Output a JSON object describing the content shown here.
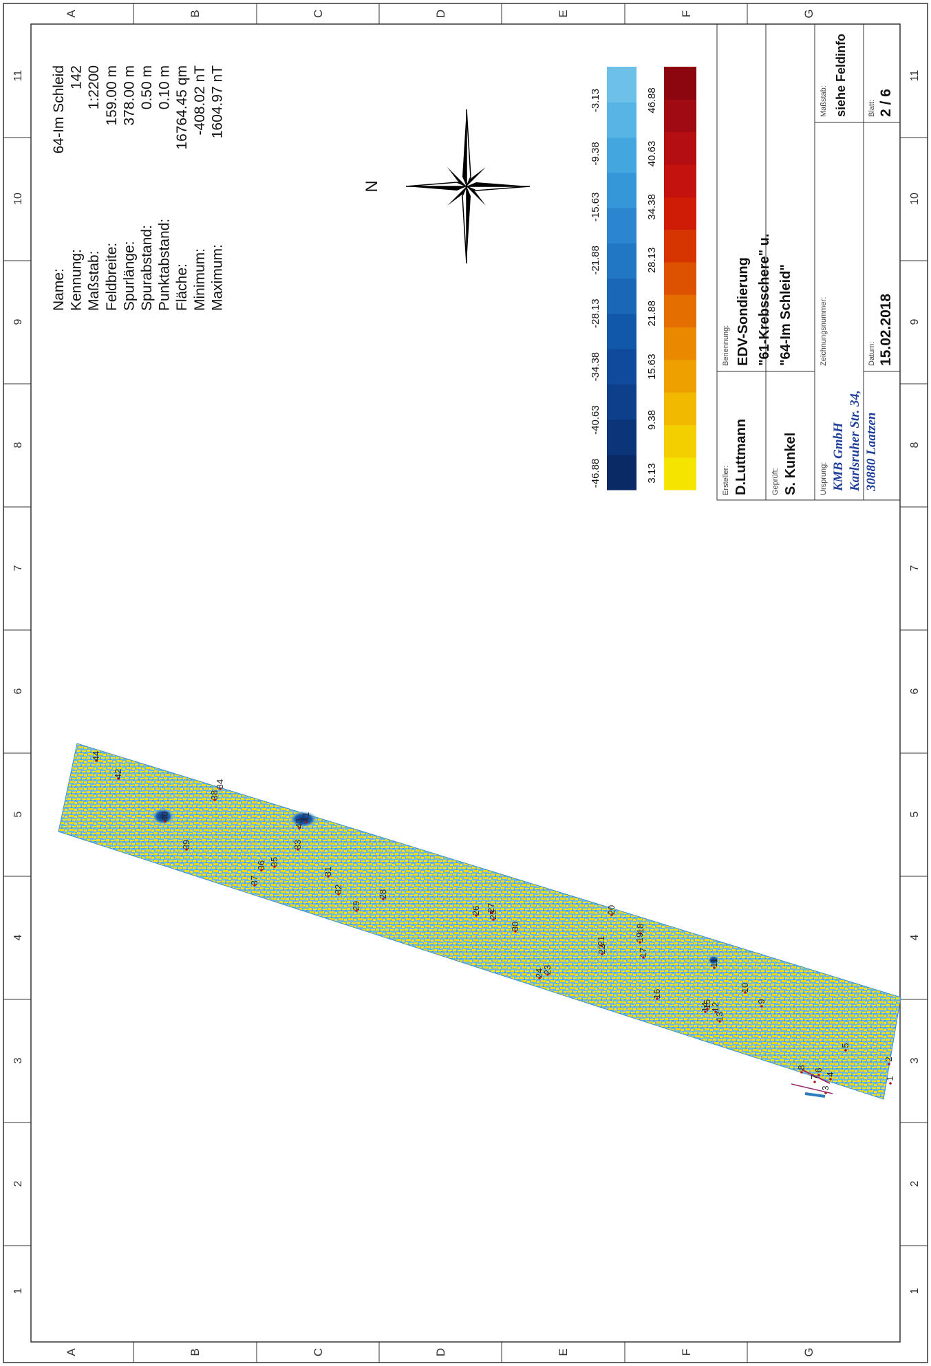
{
  "map": {
    "survey_name": "64-Im Schleid",
    "field_info": [
      {
        "label": "Name:",
        "value": "64-Im Schleid"
      },
      {
        "label": "Kennung:",
        "value": "142"
      },
      {
        "label": "Maßstab:",
        "value": "1:2200"
      },
      {
        "label": "Feldbreite:",
        "value": "159.00 m"
      },
      {
        "label": "Spurlänge:",
        "value": "378.00 m"
      },
      {
        "label": "Spurabstand:",
        "value": "0.50 m"
      },
      {
        "label": "Punktabstand:",
        "value": "0.10 m"
      },
      {
        "label": "Fläche:",
        "value": "16764.45 qm"
      },
      {
        "label": "Minimum:",
        "value": "-408.02 nT"
      },
      {
        "label": "Maximum:",
        "value": "1604.97 nT"
      }
    ],
    "north_label": "N",
    "frame": {
      "row_letters": [
        "A",
        "B",
        "C",
        "D",
        "E",
        "F",
        "G"
      ],
      "col_numbers": [
        "1",
        "2",
        "3",
        "4",
        "5",
        "6",
        "7",
        "8",
        "9",
        "10",
        "11"
      ]
    },
    "legend_blue": {
      "colors": [
        "#0a2a66",
        "#0c3478",
        "#0d3f8a",
        "#0f4a9c",
        "#1158aa",
        "#1a67b8",
        "#2277c4",
        "#2b86cf",
        "#3596d8",
        "#44a6df",
        "#58b4e4",
        "#6dc1e8"
      ],
      "labels": [
        "-46.88",
        "-40.63",
        "-34.38",
        "-28.13",
        "-21.88",
        "-15.63",
        "-9.38",
        "-3.13"
      ]
    },
    "legend_red": {
      "colors": [
        "#f5e400",
        "#f3cf00",
        "#f1b900",
        "#eea000",
        "#ea8800",
        "#e46f00",
        "#dc5200",
        "#d63400",
        "#cf1c06",
        "#c4130f",
        "#b40e12",
        "#a00a12",
        "#8c0610"
      ],
      "labels": [
        "3.13",
        "9.38",
        "15.63",
        "21.88",
        "28.13",
        "34.38",
        "40.63",
        "46.88"
      ]
    },
    "anomaly_labels": [
      "1",
      "2",
      "3",
      "4",
      "5",
      "6",
      "7",
      "8",
      "9",
      "10",
      "11",
      "12",
      "13",
      "14",
      "15",
      "16",
      "17",
      "18",
      "19",
      "20",
      "21",
      "22",
      "23",
      "24",
      "25",
      "26",
      "27",
      "28",
      "29",
      "30",
      "31",
      "32",
      "33",
      "34",
      "35",
      "36",
      "37",
      "38",
      "39",
      "40",
      "41",
      "42",
      "43",
      "44"
    ],
    "title_block": {
      "ersteller_caption": "Ersteller:",
      "ersteller": "D.Luttmann",
      "geprueft_caption": "Geprüft:",
      "geprueft": "S. Kunkel",
      "benennung_caption": "Benennung:",
      "benennung_line1": "EDV-Sondierung",
      "benennung_line2": "\"61-Krebsschere\" u.",
      "benennung_line3": "\"64-Im Schleid\"",
      "ursprung_caption": "Ursprung:",
      "ursprung_line1": "KMB GmbH",
      "ursprung_line2": "Karlsruher Str. 34,",
      "ursprung_line3": "30880 Laatzen",
      "zeichnungsnummer_caption": "Zeichnungsnummer:",
      "zeichnungsnummer": "",
      "massstab_caption": "Maßstab:",
      "massstab": "siehe Feldinfo",
      "datum_caption": "Datum:",
      "datum": "15.02.2018",
      "blatt_caption": "Blatt:",
      "blatt": "2 / 6"
    }
  }
}
